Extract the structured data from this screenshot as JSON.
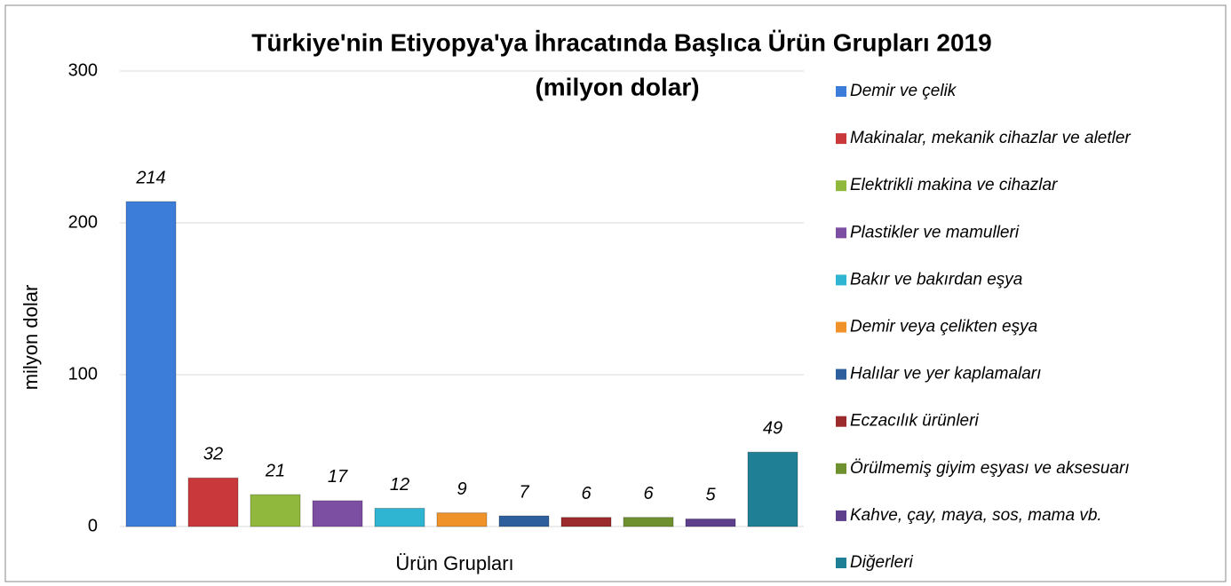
{
  "chart_data": {
    "type": "bar",
    "title": "Türkiye'nin Etiyopya'ya İhracatında Başlıca Ürün Grupları 2019",
    "subtitle": "(milyon dolar)",
    "x_label": "Ürün Grupları",
    "y_label": "milyon dolar",
    "categories": [
      "Demir ve çelik",
      "Makinalar, mekanik cihazlar ve aletler",
      "Elektrikli makina ve cihazlar",
      "Plastikler ve mamulleri",
      "Bakır ve bakırdan eşya",
      "Demir veya çelikten eşya",
      "Halılar ve yer kaplamaları",
      "Eczacılık ürünleri",
      "Örülmemiş giyim eşyası ve aksesuarı",
      "Kahve, çay, maya, sos, mama vb.",
      "Diğerleri"
    ],
    "values": [
      214,
      32,
      21,
      17,
      12,
      9,
      7,
      6,
      6,
      5,
      49
    ],
    "colors": [
      "#3b7dd8",
      "#c9383a",
      "#8fb83c",
      "#7c4fa3",
      "#2fb4d2",
      "#ef922a",
      "#2d5f9c",
      "#9c2b2d",
      "#6f902e",
      "#5d3f8c",
      "#1f7f95"
    ],
    "ylim": [
      0,
      300
    ],
    "yticks": [
      0,
      100,
      200,
      300
    ],
    "grid": true,
    "legend": "right"
  }
}
